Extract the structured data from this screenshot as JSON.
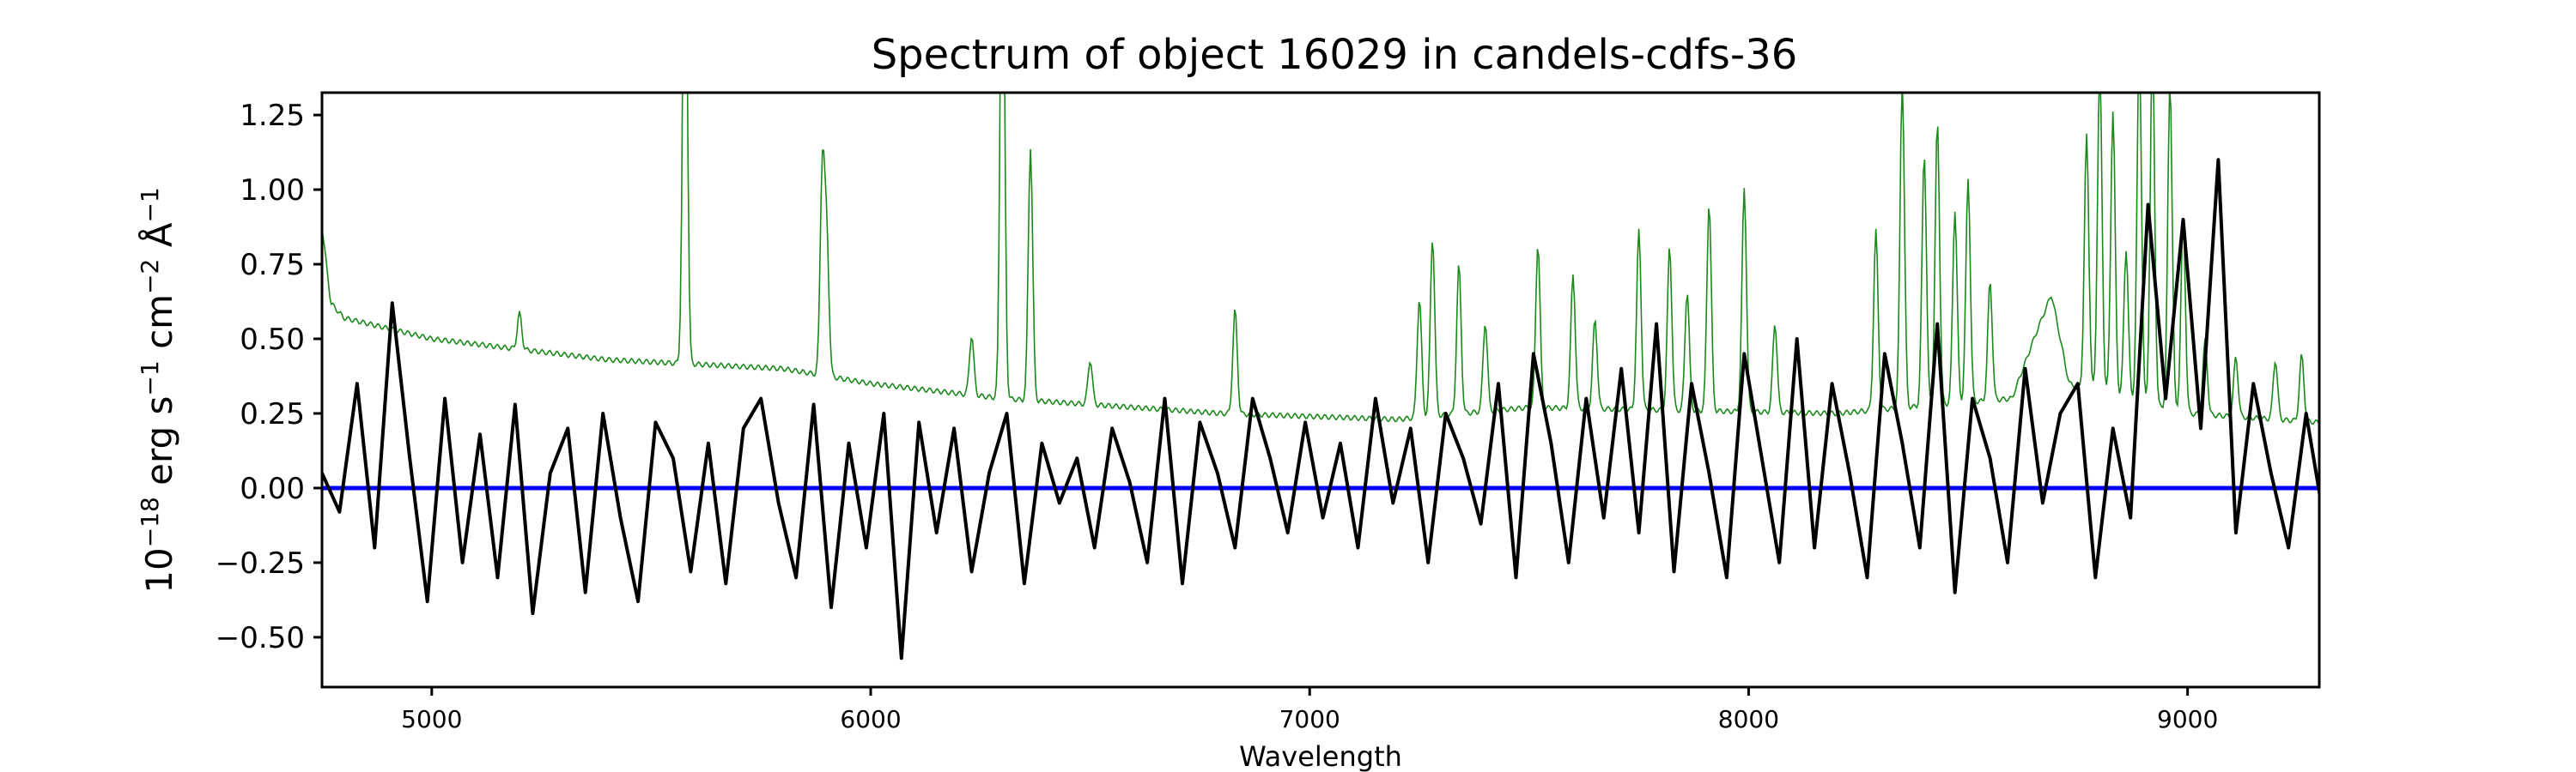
{
  "chart_data": {
    "type": "line",
    "title": "Spectrum of object 16029 in candels-cdfs-36",
    "xlabel": "Wavelength",
    "ylabel": "10^-18 erg s^-1 cm^-2 Å^-1",
    "ylabel_parts": {
      "base": "10",
      "exp1": "−18",
      "u1": " erg s",
      "exp2": "−1",
      "u2": " cm",
      "exp3": "−2",
      "u3": " Å",
      "exp4": "−1"
    },
    "xlim": [
      4750,
      9300
    ],
    "ylim": [
      -0.667,
      1.325
    ],
    "grid": false,
    "xticks": [
      5000,
      6000,
      7000,
      8000,
      9000
    ],
    "xtick_labels": [
      "5000",
      "6000",
      "7000",
      "8000",
      "9000"
    ],
    "yticks": [
      -0.5,
      -0.25,
      0,
      0.25,
      0.5,
      0.75,
      1.0,
      1.25
    ],
    "ytick_labels": [
      "−0.50",
      "−0.25",
      "0.00",
      "0.25",
      "0.50",
      "0.75",
      "1.00",
      "1.25"
    ],
    "colors": {
      "flux": "#000000",
      "contam": "#1a8a1a",
      "zero": "#0000ff"
    },
    "series": [
      {
        "name": "flux",
        "x_start": 4750,
        "x_step": 40,
        "values": [
          0.05,
          -0.08,
          0.35,
          -0.2,
          0.62,
          0.1,
          -0.38,
          0.3,
          -0.25,
          0.18,
          -0.3,
          0.28,
          -0.42,
          0.05,
          0.2,
          -0.35,
          0.25,
          -0.1,
          -0.38,
          0.22,
          0.1,
          -0.28,
          0.15,
          -0.32,
          0.2,
          0.3,
          -0.05,
          -0.3,
          0.28,
          -0.4,
          0.15,
          -0.2,
          0.25,
          -0.57,
          0.22,
          -0.15,
          0.2,
          -0.28,
          0.05,
          0.25,
          -0.32,
          0.15,
          -0.05,
          0.1,
          -0.2,
          0.2,
          0.02,
          -0.25,
          0.3,
          -0.32,
          0.22,
          0.05,
          -0.2,
          0.3,
          0.1,
          -0.15,
          0.22,
          -0.1,
          0.15,
          -0.2,
          0.3,
          -0.05,
          0.2,
          -0.25,
          0.25,
          0.1,
          -0.12,
          0.35,
          -0.3,
          0.45,
          0.15,
          -0.25,
          0.3,
          -0.1,
          0.4,
          -0.15,
          0.55,
          -0.28,
          0.35,
          0.05,
          -0.3,
          0.45,
          0.1,
          -0.25,
          0.5,
          -0.2,
          0.35,
          0.05,
          -0.3,
          0.45,
          0.15,
          -0.2,
          0.55,
          -0.35,
          0.3,
          0.1,
          -0.25,
          0.4,
          -0.05,
          0.25,
          0.35,
          -0.3,
          0.2,
          -0.1,
          0.95,
          0.3,
          0.9,
          0.2,
          1.1,
          -0.15,
          0.35,
          0.05,
          -0.2,
          0.25,
          -0.1,
          0.4,
          -0.35,
          0.3,
          0.1,
          -0.05,
          0.3
        ]
      },
      {
        "name": "contam",
        "continuum": [
          [
            4750,
            0.88
          ],
          [
            4770,
            0.62
          ],
          [
            4800,
            0.57
          ],
          [
            5000,
            0.5
          ],
          [
            5400,
            0.43
          ],
          [
            5800,
            0.4
          ],
          [
            6000,
            0.35
          ],
          [
            6300,
            0.3
          ],
          [
            6800,
            0.25
          ],
          [
            7200,
            0.23
          ],
          [
            7500,
            0.27
          ],
          [
            8200,
            0.25
          ],
          [
            8600,
            0.3
          ],
          [
            8650,
            0.5
          ],
          [
            8690,
            0.65
          ],
          [
            8730,
            0.35
          ],
          [
            9000,
            0.25
          ],
          [
            9300,
            0.22
          ]
        ],
        "lines": [
          [
            5200,
            0.12
          ],
          [
            5577,
            1.8
          ],
          [
            5890,
            0.7
          ],
          [
            5900,
            0.45
          ],
          [
            6230,
            0.2
          ],
          [
            6300,
            1.8
          ],
          [
            6364,
            0.85
          ],
          [
            6500,
            0.15
          ],
          [
            6830,
            0.35
          ],
          [
            7250,
            0.4
          ],
          [
            7280,
            0.6
          ],
          [
            7340,
            0.5
          ],
          [
            7400,
            0.3
          ],
          [
            7520,
            0.55
          ],
          [
            7600,
            0.45
          ],
          [
            7650,
            0.3
          ],
          [
            7750,
            0.6
          ],
          [
            7820,
            0.55
          ],
          [
            7860,
            0.4
          ],
          [
            7910,
            0.7
          ],
          [
            7990,
            0.75
          ],
          [
            8060,
            0.3
          ],
          [
            8290,
            0.6
          ],
          [
            8350,
            1.1
          ],
          [
            8400,
            0.85
          ],
          [
            8430,
            0.95
          ],
          [
            8470,
            0.65
          ],
          [
            8500,
            0.75
          ],
          [
            8550,
            0.4
          ],
          [
            8770,
            0.85
          ],
          [
            8800,
            1.1
          ],
          [
            8830,
            0.95
          ],
          [
            8860,
            0.5
          ],
          [
            8890,
            1.2
          ],
          [
            8920,
            1.2
          ],
          [
            8960,
            1.1
          ],
          [
            8990,
            0.65
          ],
          [
            9040,
            0.25
          ],
          [
            9110,
            0.2
          ],
          [
            9200,
            0.2
          ],
          [
            9260,
            0.22
          ]
        ]
      },
      {
        "name": "zero",
        "value": 0
      }
    ]
  }
}
